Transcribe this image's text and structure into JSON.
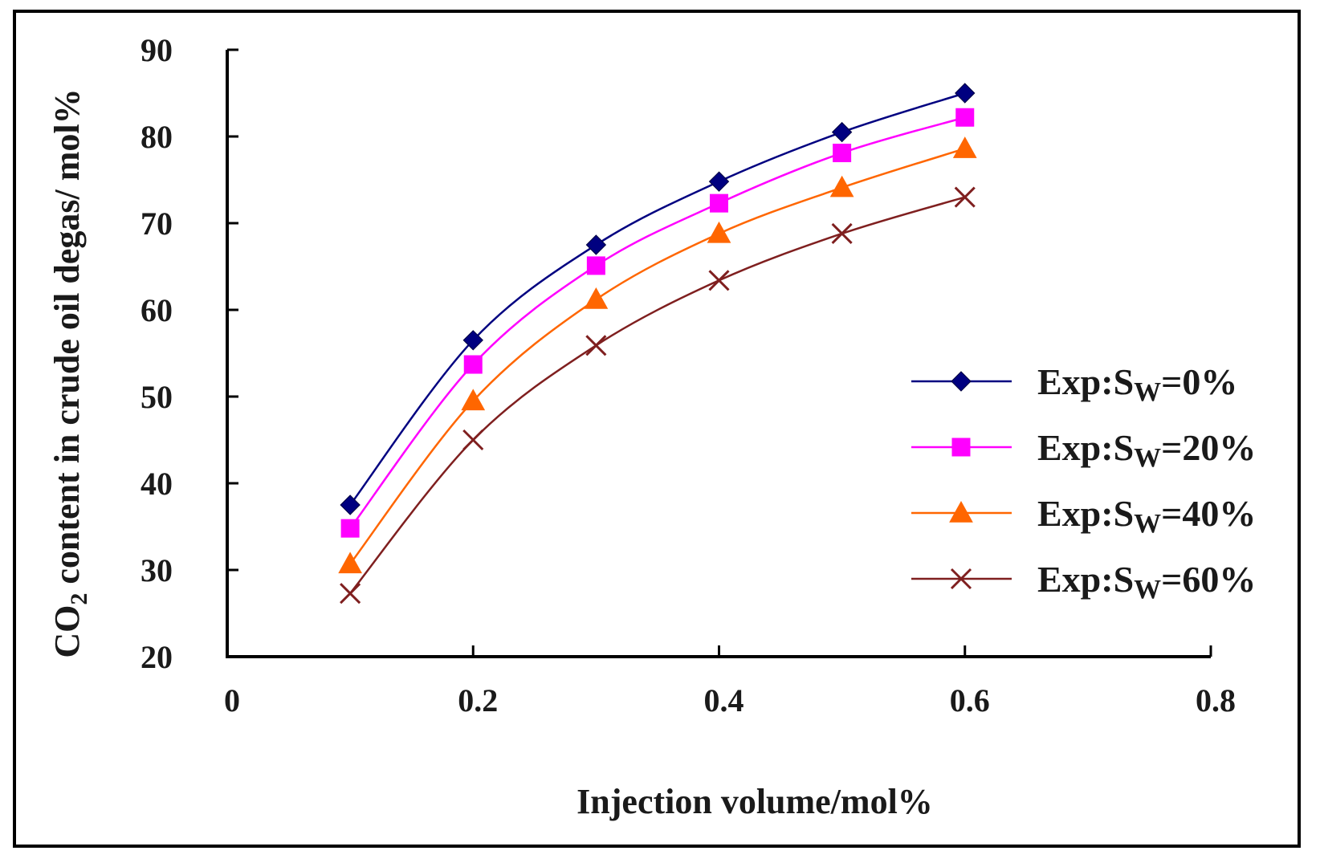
{
  "chart_data": {
    "type": "line",
    "title": "",
    "xlabel": "Injection volume/mol%",
    "ylabel": {
      "pre": "CO",
      "sub": "2",
      "post": " content in crude oil  degas/ mol%"
    },
    "xlim": [
      0,
      0.8
    ],
    "ylim": [
      20,
      90
    ],
    "xticks": [
      "0",
      "0.2",
      "0.4",
      "0.6",
      "0.8"
    ],
    "xtick_values": [
      0,
      0.2,
      0.4,
      0.6,
      0.8
    ],
    "yticks": [
      "20",
      "30",
      "40",
      "50",
      "60",
      "70",
      "80",
      "90"
    ],
    "ytick_values": [
      20,
      30,
      40,
      50,
      60,
      70,
      80,
      90
    ],
    "grid": false,
    "legend_position": "right",
    "x": [
      0.1,
      0.2,
      0.3,
      0.4,
      0.5,
      0.6
    ],
    "series": [
      {
        "name": "Exp:SW=0%",
        "label_pre": "Exp:S",
        "label_sub": "W",
        "label_post": "=0%",
        "color": "#000080",
        "marker": "diamond",
        "values": [
          37.5,
          56.5,
          67.5,
          74.8,
          80.5,
          85.0
        ]
      },
      {
        "name": "Exp:SW=20%",
        "label_pre": "Exp:S",
        "label_sub": "W",
        "label_post": "=20%",
        "color": "#ff00ff",
        "marker": "square",
        "values": [
          34.8,
          53.7,
          65.1,
          72.3,
          78.1,
          82.2
        ]
      },
      {
        "name": "Exp:SW=40%",
        "label_pre": "Exp:S",
        "label_sub": "W",
        "label_post": "=40%",
        "color": "#ff6600",
        "marker": "triangle",
        "values": [
          30.7,
          49.5,
          61.2,
          68.8,
          74.1,
          78.6
        ]
      },
      {
        "name": "Exp:SW=60%",
        "label_pre": "Exp:S",
        "label_sub": "W",
        "label_post": "=60%",
        "color": "#7f1f1f",
        "marker": "x",
        "values": [
          27.3,
          45.0,
          55.9,
          63.4,
          68.8,
          73.0
        ]
      }
    ]
  }
}
